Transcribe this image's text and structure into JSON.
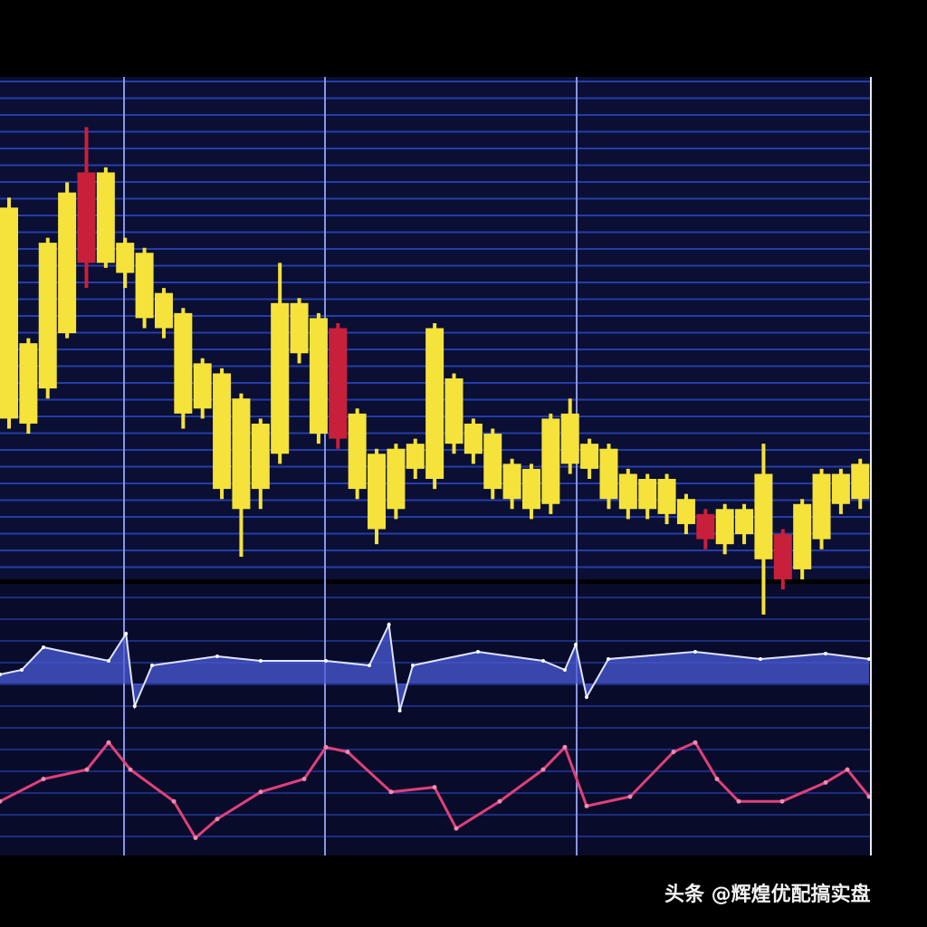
{
  "watermark": "头条 @辉煌优配搞实盘",
  "colors": {
    "background": "#000000",
    "panel": "#0a0f33",
    "grid": "#2e48c8",
    "bull": "#f5e23a",
    "bear": "#c8203a",
    "osc1": "#4a5ad8",
    "osc2": "#e0407a",
    "border": "#e8e8ff"
  },
  "chart_data": [
    {
      "type": "candlestick",
      "title": "",
      "xlabel": "",
      "ylabel": "",
      "grid": true,
      "ylim": [
        -10,
        100
      ],
      "candles": [
        {
          "o": 32,
          "c": 74,
          "h": 76,
          "l": 30
        },
        {
          "o": 31,
          "c": 47,
          "h": 48,
          "l": 29
        },
        {
          "o": 38,
          "c": 67,
          "h": 68,
          "l": 36
        },
        {
          "o": 49,
          "c": 77,
          "h": 79,
          "l": 48
        },
        {
          "o": 81,
          "c": 63,
          "h": 90,
          "l": 58
        },
        {
          "o": 63,
          "c": 81,
          "h": 82,
          "l": 62
        },
        {
          "o": 61,
          "c": 67,
          "h": 68,
          "l": 58
        },
        {
          "o": 52,
          "c": 65,
          "h": 66,
          "l": 50
        },
        {
          "o": 50,
          "c": 57,
          "h": 58,
          "l": 48
        },
        {
          "o": 33,
          "c": 53,
          "h": 54,
          "l": 30
        },
        {
          "o": 34,
          "c": 43,
          "h": 44,
          "l": 32
        },
        {
          "o": 18,
          "c": 41,
          "h": 42,
          "l": 16
        },
        {
          "o": 14,
          "c": 36,
          "h": 37,
          "l": 4.5
        },
        {
          "o": 18,
          "c": 31,
          "h": 32,
          "l": 14
        },
        {
          "o": 25,
          "c": 55,
          "h": 63,
          "l": 23
        },
        {
          "o": 45,
          "c": 55,
          "h": 56,
          "l": 43
        },
        {
          "o": 29,
          "c": 52,
          "h": 53,
          "l": 27
        },
        {
          "o": 50,
          "c": 28,
          "h": 51,
          "l": 26
        },
        {
          "o": 18,
          "c": 33,
          "h": 34,
          "l": 16
        },
        {
          "o": 10,
          "c": 25,
          "h": 26,
          "l": 7
        },
        {
          "o": 14,
          "c": 26,
          "h": 27,
          "l": 12
        },
        {
          "o": 22,
          "c": 27,
          "h": 28,
          "l": 20
        },
        {
          "o": 20,
          "c": 50,
          "h": 51,
          "l": 18
        },
        {
          "o": 27,
          "c": 40,
          "h": 41,
          "l": 25
        },
        {
          "o": 25,
          "c": 31,
          "h": 32,
          "l": 23
        },
        {
          "o": 18,
          "c": 29,
          "h": 30,
          "l": 16
        },
        {
          "o": 16,
          "c": 23,
          "h": 24,
          "l": 14
        },
        {
          "o": 14,
          "c": 22,
          "h": 23,
          "l": 12
        },
        {
          "o": 15,
          "c": 32,
          "h": 33,
          "l": 13
        },
        {
          "o": 23,
          "c": 33,
          "h": 36,
          "l": 21
        },
        {
          "o": 22,
          "c": 27,
          "h": 28,
          "l": 20
        },
        {
          "o": 16,
          "c": 26,
          "h": 27,
          "l": 14
        },
        {
          "o": 14,
          "c": 21,
          "h": 22,
          "l": 12
        },
        {
          "o": 14,
          "c": 20,
          "h": 21,
          "l": 12
        },
        {
          "o": 13,
          "c": 20,
          "h": 21,
          "l": 11
        },
        {
          "o": 11,
          "c": 16,
          "h": 17,
          "l": 9
        },
        {
          "o": 13,
          "c": 8,
          "h": 14,
          "l": 6
        },
        {
          "o": 7,
          "c": 14,
          "h": 15,
          "l": 5
        },
        {
          "o": 9,
          "c": 14,
          "h": 15,
          "l": 7
        },
        {
          "o": 4,
          "c": 21,
          "h": 27,
          "l": -7
        },
        {
          "o": 9,
          "c": 0,
          "h": 10,
          "l": -2
        },
        {
          "o": 2,
          "c": 15,
          "h": 16,
          "l": 0
        },
        {
          "o": 8,
          "c": 21,
          "h": 22,
          "l": 6
        },
        {
          "o": 15,
          "c": 21,
          "h": 22,
          "l": 13
        },
        {
          "o": 16,
          "c": 23,
          "h": 24,
          "l": 14
        }
      ]
    },
    {
      "type": "line",
      "title": "",
      "x": [
        0,
        1,
        2,
        5,
        5.8,
        6.2,
        7,
        10,
        12,
        15,
        17,
        17.9,
        18.4,
        19,
        22,
        25,
        26,
        26.5,
        27,
        28,
        32,
        35,
        38,
        40
      ],
      "values": [
        55,
        60,
        85,
        70,
        100,
        20,
        65,
        75,
        70,
        70,
        65,
        110,
        15,
        65,
        80,
        70,
        60,
        88,
        30,
        72,
        80,
        72,
        78,
        72
      ]
    },
    {
      "type": "line",
      "title": "",
      "x": [
        0,
        2,
        4,
        5,
        6,
        8,
        9,
        10,
        12,
        14,
        15,
        16,
        18,
        20,
        21,
        23,
        25,
        26,
        27,
        29,
        31,
        32,
        33,
        34,
        36,
        38,
        39,
        40
      ],
      "values": [
        46,
        65,
        73,
        96,
        73,
        46,
        15,
        31,
        54,
        65,
        92,
        88,
        54,
        58,
        23,
        46,
        73,
        92,
        42,
        50,
        88,
        96,
        65,
        46,
        46,
        62,
        73,
        50
      ]
    }
  ]
}
